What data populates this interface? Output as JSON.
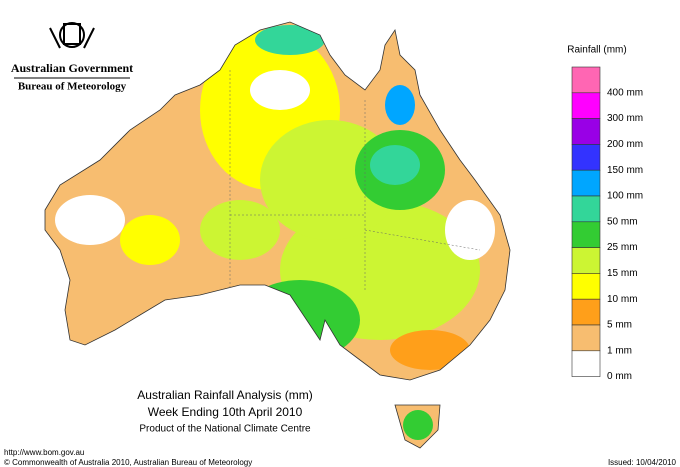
{
  "header": {
    "agency": "Australian Government",
    "bureau": "Bureau of Meteorology"
  },
  "legend": {
    "title": "Rainfall (mm)",
    "items": [
      {
        "color": "#ff66b3",
        "label": "400 mm"
      },
      {
        "color": "#ff00ff",
        "label": "300 mm"
      },
      {
        "color": "#9900e6",
        "label": "200 mm"
      },
      {
        "color": "#3333ff",
        "label": "150 mm"
      },
      {
        "color": "#00a6ff",
        "label": "100 mm"
      },
      {
        "color": "#33d699",
        "label": "50 mm"
      },
      {
        "color": "#33cc33",
        "label": "25 mm"
      },
      {
        "color": "#ccf533",
        "label": "15 mm"
      },
      {
        "color": "#ffff00",
        "label": "10 mm"
      },
      {
        "color": "#ff9f1a",
        "label": "5 mm"
      },
      {
        "color": "#f7bd70",
        "label": "1 mm"
      },
      {
        "color": "#ffffff",
        "label": "0 mm"
      }
    ]
  },
  "caption": {
    "title": "Australian Rainfall Analysis (mm)",
    "period": "Week Ending 10th April 2010",
    "credit": "Product of the National Climate Centre"
  },
  "footer": {
    "url": "http://www.bom.gov.au",
    "copyright": "© Commonwealth of Australia 2010, Australian Bureau of Meteorology",
    "issued": "Issued: 10/04/2010"
  }
}
